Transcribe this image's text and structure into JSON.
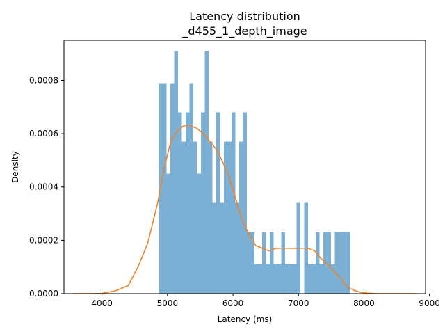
{
  "chart_data": {
    "type": "bar",
    "title": "Latency distribution",
    "subtitle": "_d455_1_depth_image",
    "xlabel": "Latency (ms)",
    "ylabel": "Density",
    "xlim": [
      3420,
      8940
    ],
    "ylim": [
      0,
      0.00095
    ],
    "x_ticks": [
      4000,
      5000,
      6000,
      7000,
      8000,
      9000
    ],
    "y_ticks": [
      0.0,
      0.0002,
      0.0004,
      0.0006,
      0.0008
    ],
    "x_tick_labels": [
      "4000",
      "5000",
      "6000",
      "7000",
      "8000",
      "9000"
    ],
    "y_tick_labels": [
      "0.0000",
      "0.0002",
      "0.0004",
      "0.0006",
      "0.0008"
    ],
    "grid": false,
    "legend": "none",
    "series": [
      {
        "kind": "histogram",
        "color": "#7bafd4",
        "bin_start": 4870,
        "bin_width": 58.4,
        "values": [
          0.00079,
          0.00079,
          0.00045,
          0.00079,
          0.00091,
          0.00068,
          0.00057,
          0.00068,
          0.00079,
          0.00057,
          0.00045,
          0.00068,
          0.00091,
          0.00057,
          0.00034,
          0.00068,
          0.00034,
          0.00057,
          0.00057,
          0.00068,
          0.00034,
          0.00057,
          0.00068,
          0.00023,
          0.00023,
          0.00011,
          0.00011,
          0.00023,
          0.00011,
          0.00023,
          0.00011,
          0.00011,
          0.00023,
          0.00011,
          0.00011,
          0.00011,
          0.00034,
          0.0,
          0.00034,
          0.00011,
          0.00011,
          0.00023,
          0.00011,
          0.00023,
          0.00023,
          0.00011,
          0.00023,
          0.00023,
          0.00023,
          0.00023
        ]
      },
      {
        "kind": "kde",
        "color": "#f28225",
        "x": [
          3560,
          3800,
          4000,
          4200,
          4400,
          4550,
          4700,
          4850,
          4950,
          5050,
          5150,
          5250,
          5350,
          5450,
          5550,
          5650,
          5750,
          5850,
          5950,
          6050,
          6150,
          6250,
          6350,
          6450,
          6550,
          6650,
          6750,
          6850,
          6950,
          7050,
          7150,
          7250,
          7350,
          7450,
          7550,
          7650,
          7750,
          7850,
          7950,
          8050,
          8200,
          8400,
          8600,
          8800
        ],
        "y": [
          0.0,
          0.0,
          1e-06,
          1e-05,
          3e-05,
          0.0001,
          0.00019,
          0.00034,
          0.00047,
          0.00057,
          0.00061,
          0.00063,
          0.00063,
          0.00062,
          0.0006,
          0.00057,
          0.00054,
          0.00049,
          0.00043,
          0.00035,
          0.00027,
          0.00022,
          0.00018,
          0.00017,
          0.00016,
          0.00017,
          0.00017,
          0.00017,
          0.00017,
          0.00017,
          0.00017,
          0.00016,
          0.00013,
          0.00011,
          8e-05,
          5.5e-05,
          2.5e-05,
          1.2e-05,
          5e-06,
          2e-06,
          0.0,
          0.0,
          0.0,
          0.0
        ]
      }
    ]
  }
}
